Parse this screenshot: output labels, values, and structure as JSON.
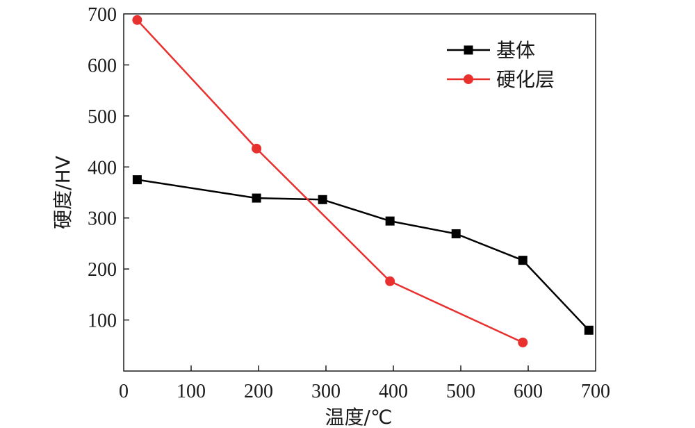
{
  "chart_data": {
    "type": "line",
    "title": "",
    "xlabel": "温度/℃",
    "ylabel": "硬度/HV",
    "xlim": [
      0,
      700
    ],
    "ylim": [
      0,
      700
    ],
    "x_ticks": [
      0,
      100,
      200,
      300,
      400,
      500,
      600,
      700
    ],
    "y_ticks": [
      100,
      200,
      300,
      400,
      500,
      600,
      700
    ],
    "grid": false,
    "legend_position": "top-right",
    "series": [
      {
        "name": "基体",
        "color": "#000000",
        "marker": "square",
        "x": [
          20,
          197,
          295,
          395,
          493,
          592,
          690
        ],
        "y": [
          375,
          339,
          336,
          294,
          269,
          217,
          80
        ]
      },
      {
        "name": "硬化层",
        "color": "#e8302f",
        "marker": "circle",
        "x": [
          20,
          197,
          395,
          592
        ],
        "y": [
          688,
          436,
          176,
          56
        ]
      }
    ]
  }
}
